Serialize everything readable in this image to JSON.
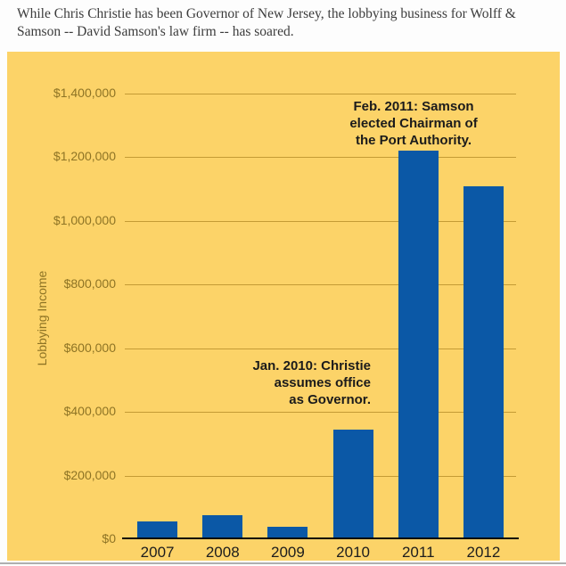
{
  "caption": {
    "lines": [
      "While Chris Christie has been Governor of New Jersey, the lobbying business for Wolff &",
      "Samson -- David Samson's law firm -- has soared."
    ]
  },
  "chart_data": {
    "type": "bar",
    "title": "",
    "categories": [
      "2007",
      "2008",
      "2009",
      "2010",
      "2011",
      "2012"
    ],
    "values": [
      55000,
      75000,
      40000,
      345000,
      1220000,
      1110000
    ],
    "xlabel": "",
    "ylabel": "Lobbying Income",
    "ylim": [
      0,
      1400000
    ],
    "ytick_step": 200000,
    "ytick_labels": [
      "$0",
      "$200,000",
      "$400,000",
      "$600,000",
      "$800,000",
      "$1,000,000",
      "$1,200,000",
      "$1,400,000"
    ],
    "grid": true,
    "legend": "none",
    "annotations": [
      {
        "id": "samson-chairman",
        "text": "Feb. 2011: Samson\nelected Chairman of\nthe Port Authority.",
        "align": "center"
      },
      {
        "id": "christie-governor",
        "text": "Jan. 2010: Christie\nassumes office\nas Governor.",
        "align": "right"
      }
    ],
    "colors": {
      "bar": "#0B58A6",
      "panel_background": "#FCD368",
      "gridline": "#C49B35",
      "tick_label": "#8E7425",
      "axis_line": "#0A0A0A",
      "annotation_text": "#1B1B1B",
      "x_tick_label": "#1D1D1D"
    }
  }
}
